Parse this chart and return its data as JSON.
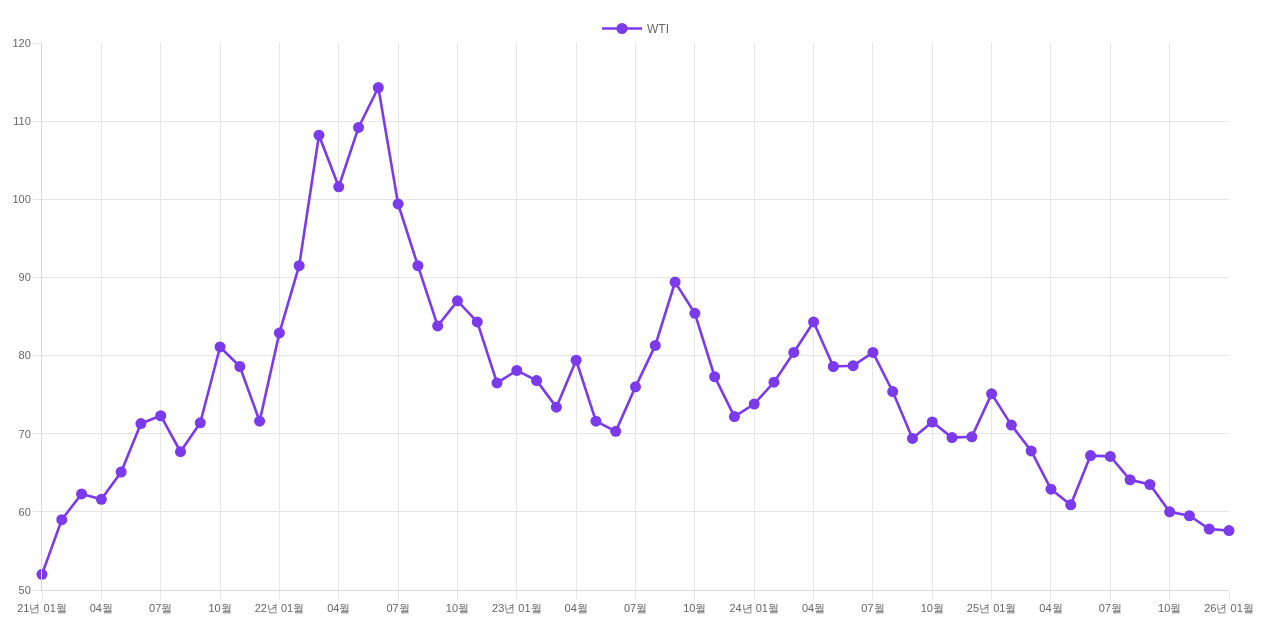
{
  "chart_data": {
    "type": "line",
    "categories": [
      "21년 01월",
      null,
      null,
      "04월",
      null,
      null,
      "07월",
      null,
      null,
      "10월",
      null,
      null,
      "22년 01월",
      null,
      null,
      "04월",
      null,
      null,
      "07월",
      null,
      null,
      "10월",
      null,
      null,
      "23년 01월",
      null,
      null,
      "04월",
      null,
      null,
      "07월",
      null,
      null,
      "10월",
      null,
      null,
      "24년 01월",
      null,
      null,
      "04월",
      null,
      null,
      "07월",
      null,
      null,
      "10월",
      null,
      null,
      "25년 01월",
      null,
      null,
      "04월",
      null,
      null,
      "07월",
      null,
      null,
      "10월",
      null,
      null,
      "26년 01월"
    ],
    "series": [
      {
        "name": "WTI",
        "color": "#7c3aed",
        "values": [
          52.0,
          59.0,
          62.3,
          61.6,
          65.1,
          71.3,
          72.3,
          67.7,
          71.4,
          81.1,
          78.6,
          71.6,
          82.9,
          91.5,
          108.2,
          101.6,
          109.2,
          114.3,
          99.4,
          91.5,
          83.8,
          87.0,
          84.3,
          76.5,
          78.1,
          76.8,
          73.4,
          79.4,
          71.6,
          70.3,
          76.0,
          81.3,
          89.4,
          85.4,
          77.3,
          72.2,
          73.8,
          76.6,
          80.4,
          84.3,
          78.6,
          78.7,
          80.4,
          75.4,
          69.4,
          71.5,
          69.5,
          69.6,
          75.1,
          71.1,
          67.8,
          62.9,
          60.9,
          67.2,
          67.1,
          64.1,
          63.5,
          60.0,
          59.5,
          57.8,
          57.6
        ]
      }
    ],
    "ylim": [
      50,
      120
    ],
    "yticks": [
      50,
      60,
      70,
      80,
      90,
      100,
      110,
      120
    ],
    "grid": true,
    "legend": "top",
    "marker": "circle"
  }
}
